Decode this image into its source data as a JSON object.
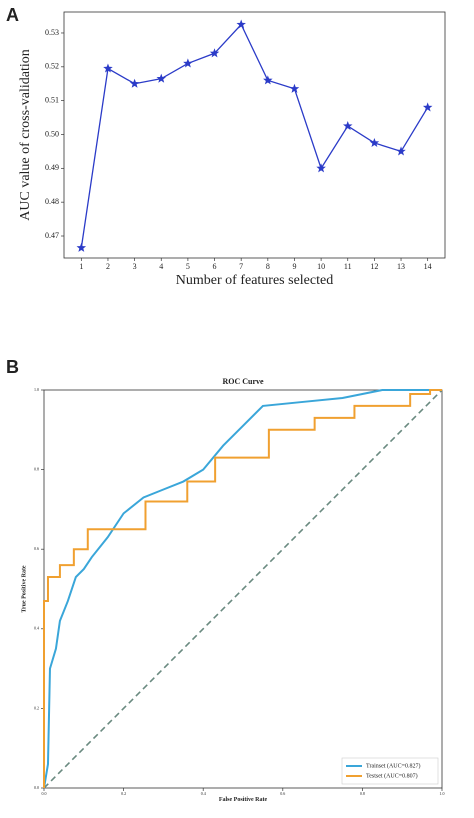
{
  "chart_data": [
    {
      "type": "line",
      "panel_label": "A",
      "xlabel": "Number of features selected",
      "ylabel": "AUC value of cross-validation",
      "marker": "star",
      "grid": false,
      "xlim": [
        0.35,
        14.65
      ],
      "ylim": [
        0.4635,
        0.5362
      ],
      "xticks": [
        1,
        2,
        3,
        4,
        5,
        6,
        7,
        8,
        9,
        10,
        11,
        12,
        13,
        14
      ],
      "yticks": [
        0.47,
        0.48,
        0.49,
        {
          "value": 0.5,
          "label": "0.50"
        },
        0.51,
        0.52,
        0.53
      ],
      "series": [
        {
          "color": "#2b3bc8",
          "x": [
            1,
            2,
            3,
            4,
            5,
            6,
            7,
            8,
            9,
            10,
            11,
            12,
            13,
            14
          ],
          "values": [
            0.4665,
            0.5195,
            0.515,
            0.5165,
            0.521,
            0.524,
            0.5325,
            0.516,
            0.5135,
            0.49,
            0.5025,
            0.4975,
            0.495,
            0.508
          ]
        }
      ]
    },
    {
      "type": "line",
      "panel_label": "B",
      "title": "ROC Curve",
      "xlabel": "False Positive Rate",
      "ylabel": "True Positive Rate",
      "legend": "lower right",
      "grid": false,
      "diagonal": true,
      "xlim": [
        0,
        1
      ],
      "ylim": [
        0,
        1
      ],
      "xticks": [
        {
          "value": 0,
          "label": "0.0"
        },
        0.2,
        0.4,
        0.6,
        0.8,
        {
          "value": 1,
          "label": "1.0"
        }
      ],
      "yticks": [
        {
          "value": 0,
          "label": "0.0"
        },
        0.2,
        0.4,
        0.6,
        0.8,
        {
          "value": 1,
          "label": "1.0"
        }
      ],
      "series": [
        {
          "name": "Trainset (AUC=0.827)",
          "color": "#3aa6d9",
          "x": [
            0,
            0.01,
            0.015,
            0.03,
            0.04,
            0.06,
            0.08,
            0.1,
            0.12,
            0.16,
            0.2,
            0.25,
            0.3,
            0.35,
            0.4,
            0.45,
            0.5,
            0.55,
            0.65,
            0.75,
            0.85,
            1
          ],
          "values": [
            0,
            0.06,
            0.3,
            0.35,
            0.42,
            0.47,
            0.53,
            0.55,
            0.58,
            0.63,
            0.69,
            0.73,
            0.75,
            0.77,
            0.8,
            0.86,
            0.91,
            0.96,
            0.97,
            0.98,
            1,
            1
          ]
        },
        {
          "name": "Testset (AUC=0.807)",
          "color": "#f0a030",
          "x": [
            0,
            0,
            0.01,
            0.01,
            0.04,
            0.04,
            0.075,
            0.075,
            0.11,
            0.11,
            0.255,
            0.255,
            0.36,
            0.36,
            0.43,
            0.43,
            0.565,
            0.565,
            0.68,
            0.68,
            0.78,
            0.78,
            0.92,
            0.92,
            0.97,
            0.97,
            1
          ],
          "values": [
            0,
            0.47,
            0.47,
            0.53,
            0.53,
            0.56,
            0.56,
            0.6,
            0.6,
            0.65,
            0.65,
            0.72,
            0.72,
            0.77,
            0.77,
            0.83,
            0.83,
            0.9,
            0.9,
            0.93,
            0.93,
            0.96,
            0.96,
            0.99,
            0.99,
            1,
            1
          ]
        }
      ]
    }
  ]
}
